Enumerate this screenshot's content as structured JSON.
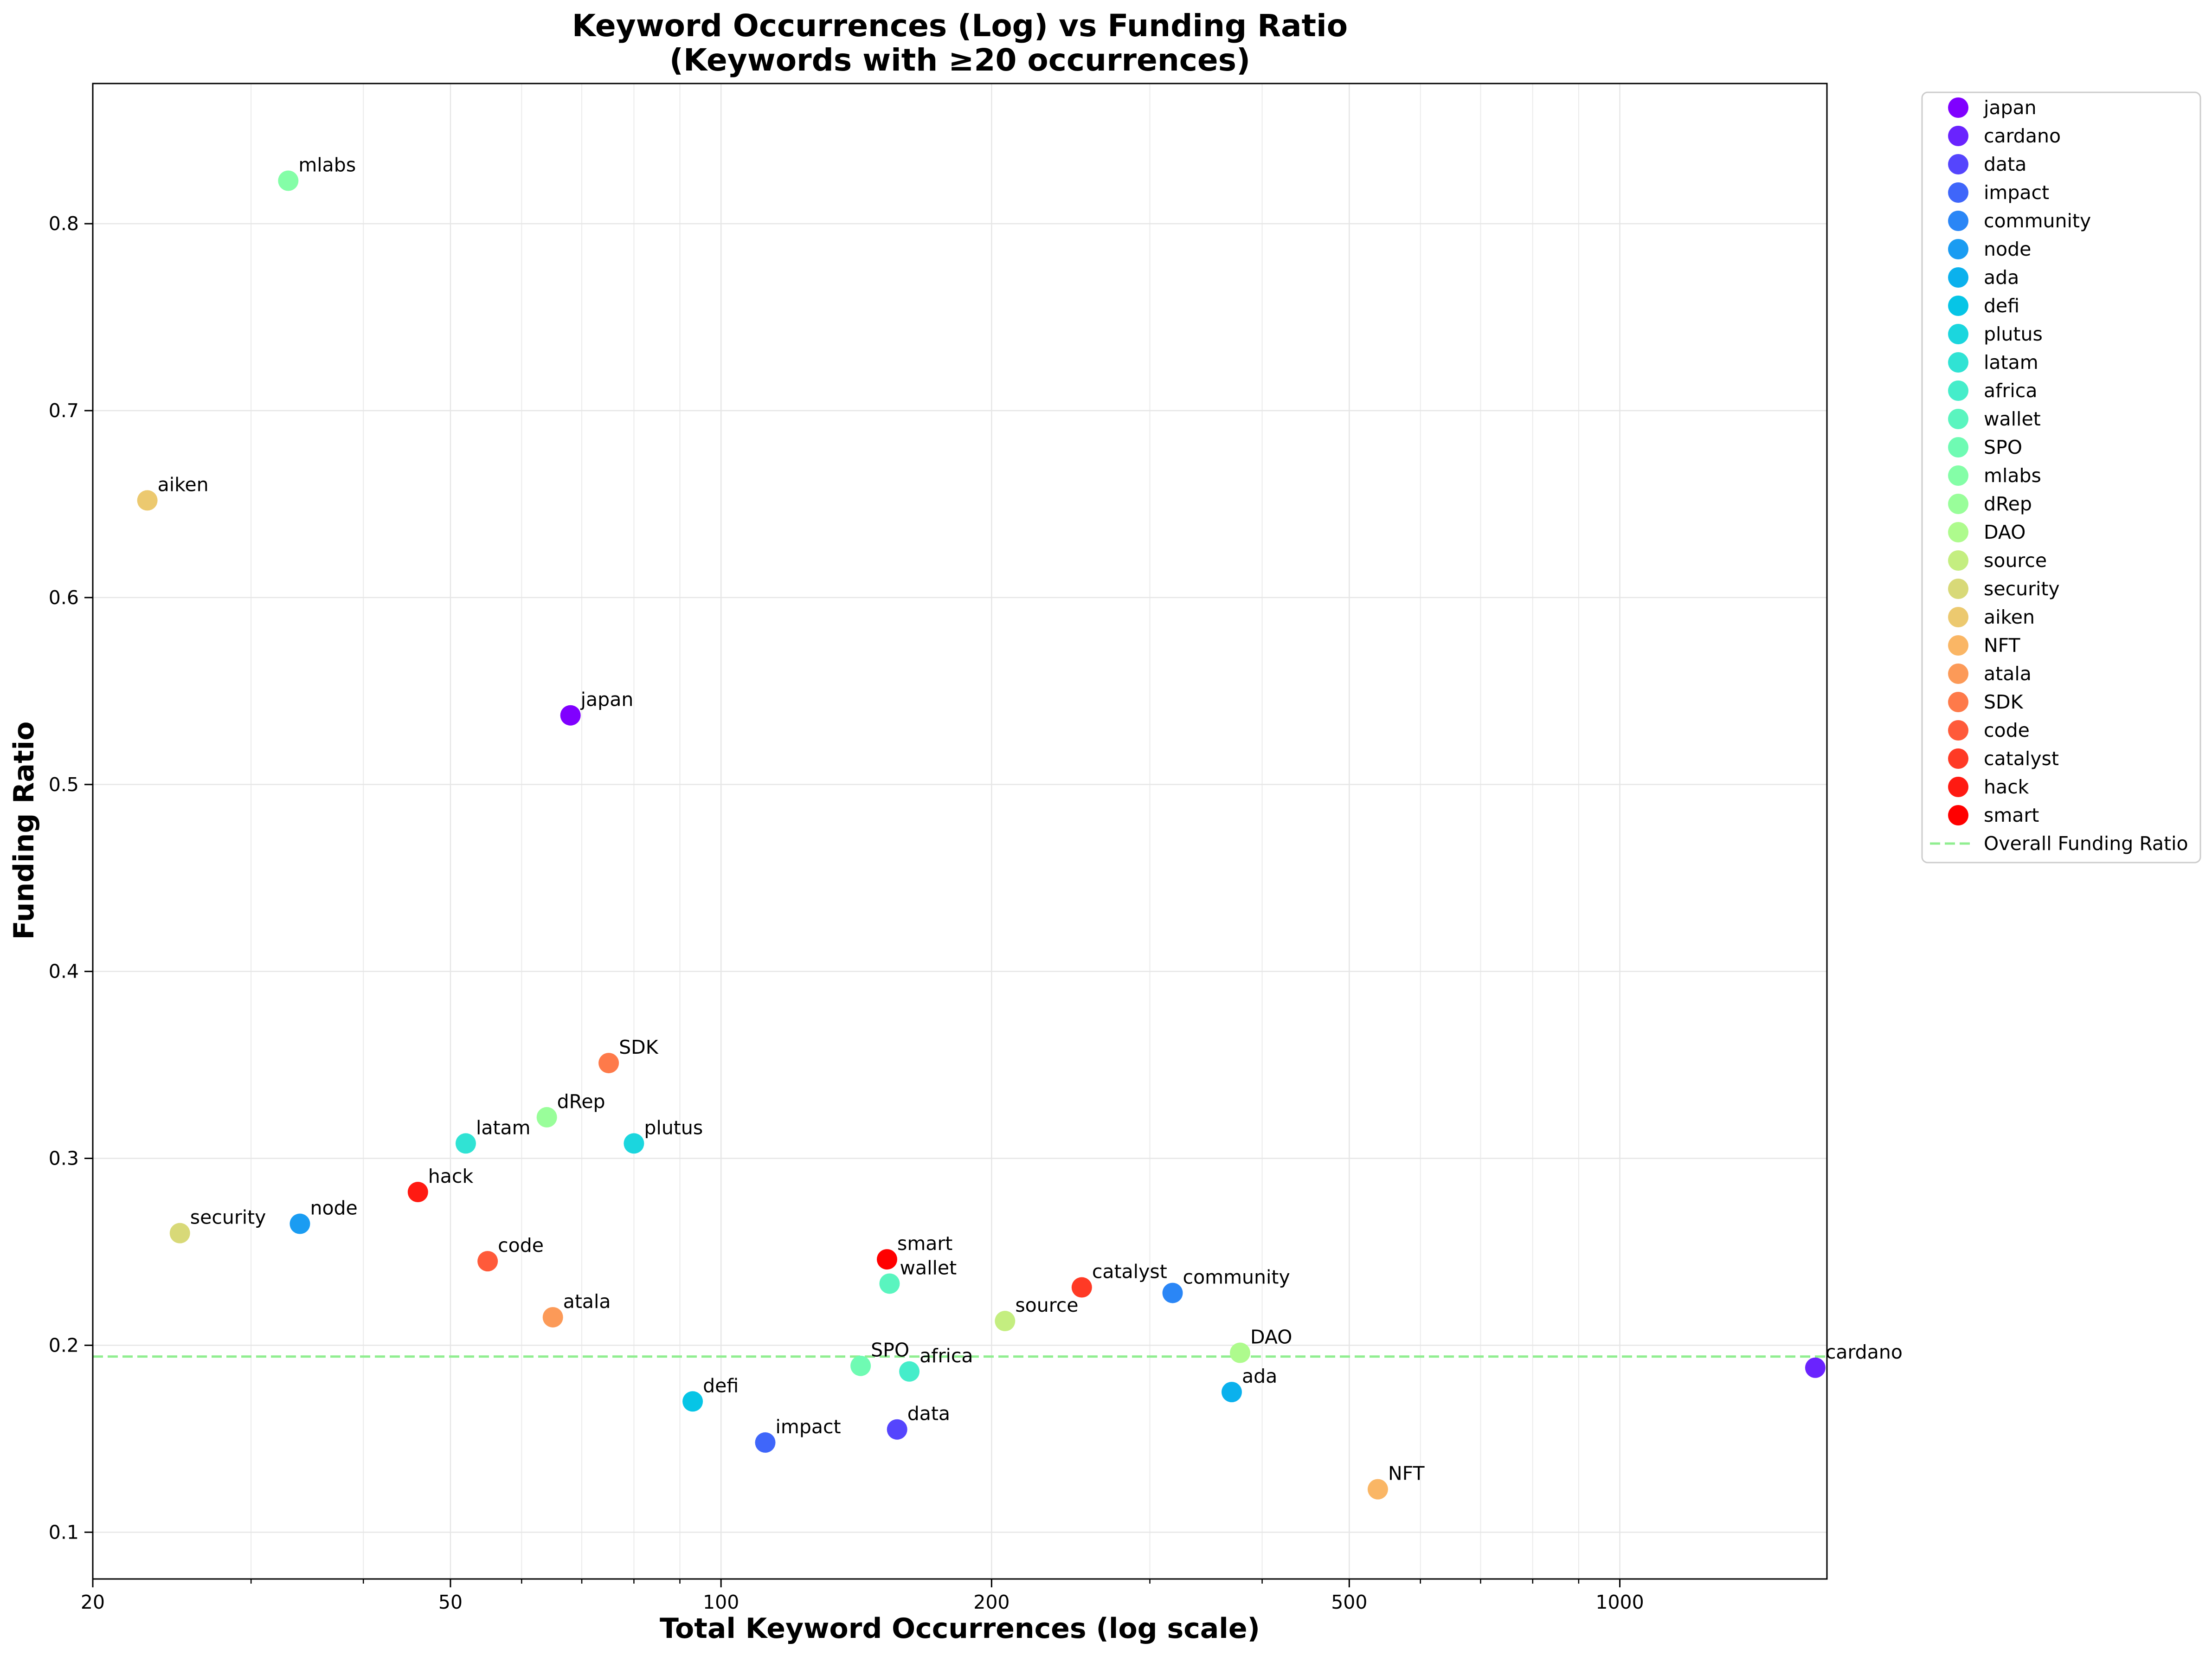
{
  "chart_data": {
    "type": "scatter",
    "title": "Keyword Occurrences (Log) vs Funding Ratio",
    "subtitle": "(Keywords with ≥20 occurrences)",
    "xlabel": "Total Keyword Occurrences (log scale)",
    "ylabel": "Funding Ratio",
    "xscale": "log",
    "xlim": [
      20,
      1700
    ],
    "ylim": [
      0.075,
      0.875
    ],
    "xticks": [
      20,
      50,
      100,
      200,
      500,
      1000
    ],
    "xtick_labels": [
      "20",
      "50",
      "100",
      "200",
      "500",
      "1000"
    ],
    "yticks": [
      0.1,
      0.2,
      0.3,
      0.4,
      0.5,
      0.6,
      0.7,
      0.8
    ],
    "ytick_labels": [
      "0.1",
      "0.2",
      "0.3",
      "0.4",
      "0.5",
      "0.6",
      "0.7",
      "0.8"
    ],
    "grid": true,
    "legend_position": "outside-right",
    "reference_line": {
      "name": "Overall Funding Ratio",
      "y": 0.194,
      "color": "#90ee90",
      "style": "dashed"
    },
    "series": [
      {
        "name": "japan",
        "x": 68,
        "y": 0.537,
        "color": "#8000ff"
      },
      {
        "name": "cardano",
        "x": 1650,
        "y": 0.188,
        "color": "#6a23fe"
      },
      {
        "name": "data",
        "x": 157,
        "y": 0.155,
        "color": "#5545fd"
      },
      {
        "name": "impact",
        "x": 112,
        "y": 0.148,
        "color": "#3f66fa"
      },
      {
        "name": "community",
        "x": 318,
        "y": 0.228,
        "color": "#2a86f6"
      },
      {
        "name": "node",
        "x": 34,
        "y": 0.265,
        "color": "#1a9cf2"
      },
      {
        "name": "ada",
        "x": 370,
        "y": 0.175,
        "color": "#0bb1ed"
      },
      {
        "name": "defi",
        "x": 93,
        "y": 0.17,
        "color": "#06c5e6"
      },
      {
        "name": "plutus",
        "x": 80,
        "y": 0.308,
        "color": "#1bd6de"
      },
      {
        "name": "latam",
        "x": 52,
        "y": 0.308,
        "color": "#30e3d4"
      },
      {
        "name": "africa",
        "x": 162,
        "y": 0.186,
        "color": "#45edca"
      },
      {
        "name": "wallet",
        "x": 154,
        "y": 0.233,
        "color": "#5af5bf"
      },
      {
        "name": "SPO",
        "x": 143,
        "y": 0.189,
        "color": "#6ffbb3"
      },
      {
        "name": "mlabs",
        "x": 33,
        "y": 0.823,
        "color": "#84fea7"
      },
      {
        "name": "dRep",
        "x": 64,
        "y": 0.322,
        "color": "#99fe9a"
      },
      {
        "name": "DAO",
        "x": 378,
        "y": 0.196,
        "color": "#aefb8d"
      },
      {
        "name": "source",
        "x": 207,
        "y": 0.213,
        "color": "#c4ee80"
      },
      {
        "name": "security",
        "x": 25,
        "y": 0.26,
        "color": "#d8d978"
      },
      {
        "name": "aiken",
        "x": 23,
        "y": 0.652,
        "color": "#ecc96f"
      },
      {
        "name": "NFT",
        "x": 538,
        "y": 0.123,
        "color": "#fab665"
      },
      {
        "name": "atala",
        "x": 65,
        "y": 0.215,
        "color": "#fc9a58"
      },
      {
        "name": "SDK",
        "x": 75,
        "y": 0.351,
        "color": "#fe7a4a"
      },
      {
        "name": "code",
        "x": 55,
        "y": 0.245,
        "color": "#ff5a3a"
      },
      {
        "name": "catalyst",
        "x": 252,
        "y": 0.231,
        "color": "#ff3a25"
      },
      {
        "name": "hack",
        "x": 46,
        "y": 0.282,
        "color": "#ff1a12"
      },
      {
        "name": "smart",
        "x": 153,
        "y": 0.246,
        "color": "#ff0000"
      }
    ]
  }
}
